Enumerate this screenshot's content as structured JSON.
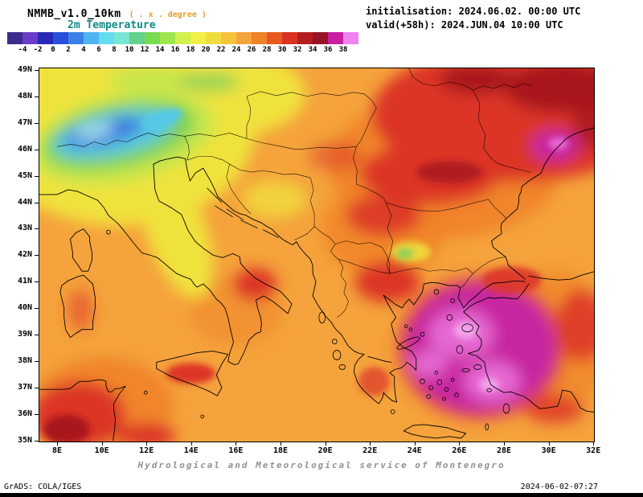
{
  "header": {
    "model": "NMMB_v1.0_10km",
    "grid_note": "( . x . degree )",
    "variable": "2m Temperature",
    "initialisation": "initialisation: 2024.06.02. 00:00 UTC",
    "valid": "valid(+58h): 2024.JUN.04 10:00 UTC"
  },
  "colorbar": {
    "unit_labels": [
      "-4",
      "-2",
      "0",
      "2",
      "4",
      "6",
      "8",
      "10",
      "12",
      "14",
      "16",
      "18",
      "20",
      "22",
      "24",
      "26",
      "28",
      "30",
      "32",
      "34",
      "36",
      "38"
    ],
    "colors": [
      "#3c2c8c",
      "#6a3cc8",
      "#2828b4",
      "#2850dc",
      "#3c82e6",
      "#50b4f0",
      "#64dcf0",
      "#78e6d2",
      "#64d28c",
      "#78dc50",
      "#a0e650",
      "#d2f050",
      "#f0f046",
      "#f0dc3c",
      "#f5c33c",
      "#f5a33c",
      "#f08228",
      "#e65a20",
      "#d83220",
      "#b41e1e",
      "#961428",
      "#c81ea0",
      "#ee82ee"
    ]
  },
  "map": {
    "lat_labels": [
      "49N",
      "48N",
      "47N",
      "46N",
      "45N",
      "44N",
      "43N",
      "42N",
      "41N",
      "40N",
      "39N",
      "38N",
      "37N",
      "36N",
      "35N"
    ],
    "lon_labels": [
      "8E",
      "10E",
      "12E",
      "14E",
      "16E",
      "18E",
      "20E",
      "22E",
      "24E",
      "26E",
      "28E",
      "30E",
      "32E"
    ]
  },
  "footer": {
    "service": "Hydrological and Meteorological service of Montenegro",
    "grads": "GrADS: COLA/IGES",
    "timestamp": "2024-06-02-07:27"
  }
}
